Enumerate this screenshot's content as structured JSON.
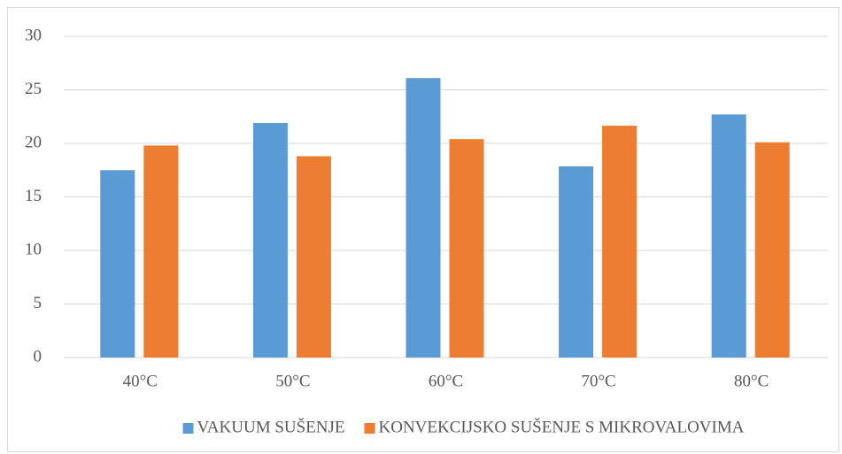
{
  "chart_data": {
    "type": "bar",
    "categories": [
      "40°C",
      "50°C",
      "60°C",
      "70°C",
      "80°C"
    ],
    "series": [
      {
        "name": "VAKUUM SUŠENJE",
        "color": "#5b9bd5",
        "values": [
          17.5,
          21.9,
          26.1,
          17.85,
          22.7
        ]
      },
      {
        "name": "KONVEKCIJSKO SUŠENJE S MIKROVALOVIMA",
        "color": "#ed7d31",
        "values": [
          19.8,
          18.8,
          20.4,
          21.65,
          20.1
        ]
      }
    ],
    "ylim": [
      0,
      30
    ],
    "yticks": [
      0,
      5,
      10,
      15,
      20,
      25,
      30
    ],
    "grid": true,
    "legend": "bottom"
  }
}
